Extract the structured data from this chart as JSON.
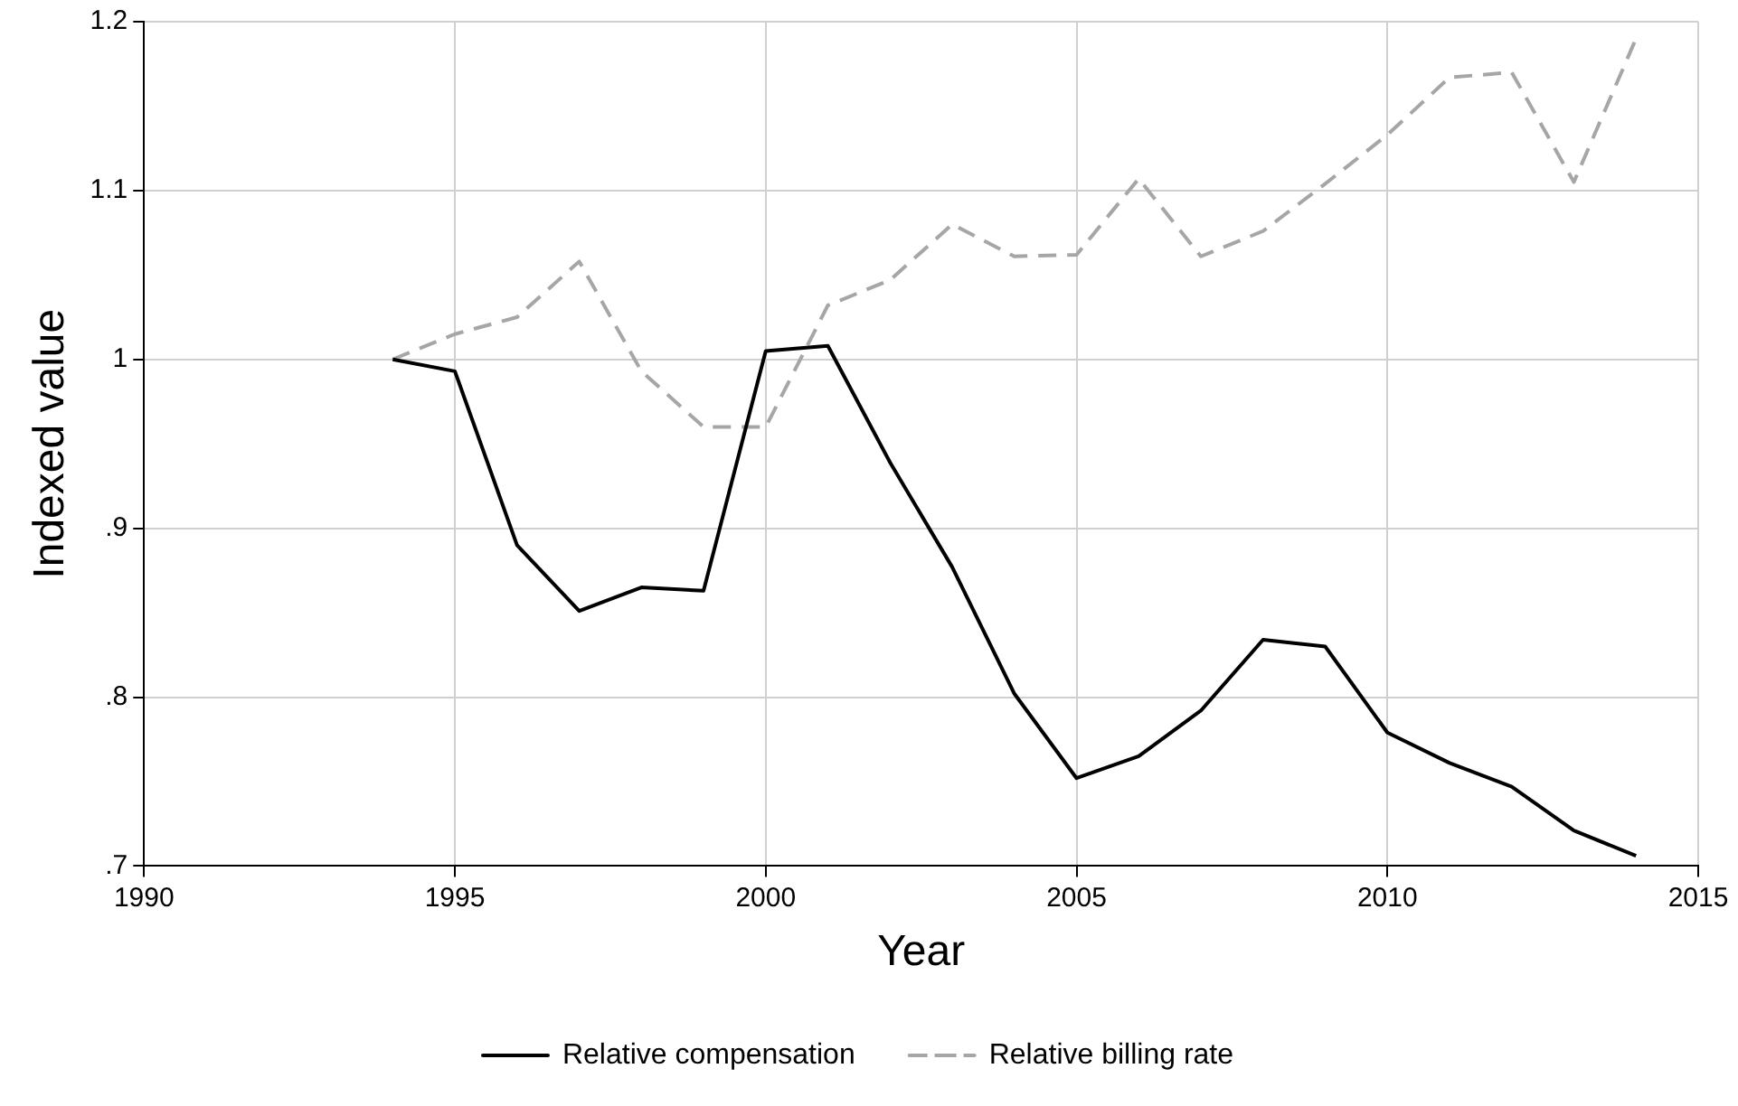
{
  "chart_data": {
    "type": "line",
    "xlabel": "Year",
    "ylabel": "Indexed value",
    "x": [
      1994,
      1995,
      1996,
      1997,
      1998,
      1999,
      2000,
      2001,
      2002,
      2003,
      2004,
      2005,
      2006,
      2007,
      2008,
      2009,
      2010,
      2011,
      2012,
      2013,
      2014
    ],
    "series": [
      {
        "name": "Relative compensation",
        "color": "#000000",
        "line_style": "solid",
        "values": [
          1.0,
          0.993,
          0.89,
          0.851,
          0.865,
          0.863,
          1.005,
          1.008,
          0.939,
          0.877,
          0.802,
          0.752,
          0.765,
          0.792,
          0.834,
          0.83,
          0.779,
          0.761,
          0.747,
          0.721,
          0.706
        ]
      },
      {
        "name": "Relative billing rate",
        "color": "#a6a6a6",
        "line_style": "dashed",
        "values": [
          1.0,
          1.015,
          1.025,
          1.058,
          0.993,
          0.96,
          0.96,
          1.032,
          1.047,
          1.08,
          1.061,
          1.062,
          1.107,
          1.061,
          1.076,
          1.104,
          1.133,
          1.167,
          1.17,
          1.105,
          1.19
        ]
      }
    ],
    "xlim": [
      1990,
      2015
    ],
    "xticks": [
      1990,
      1995,
      2000,
      2005,
      2010,
      2015
    ],
    "ylim": [
      0.7,
      1.2
    ],
    "yticks": [
      {
        "value": 0.7,
        "label": ".7"
      },
      {
        "value": 0.8,
        "label": ".8"
      },
      {
        "value": 0.9,
        "label": ".9"
      },
      1,
      1.1,
      1.2
    ],
    "grid": true,
    "legend": "bottom",
    "marker": "none"
  }
}
